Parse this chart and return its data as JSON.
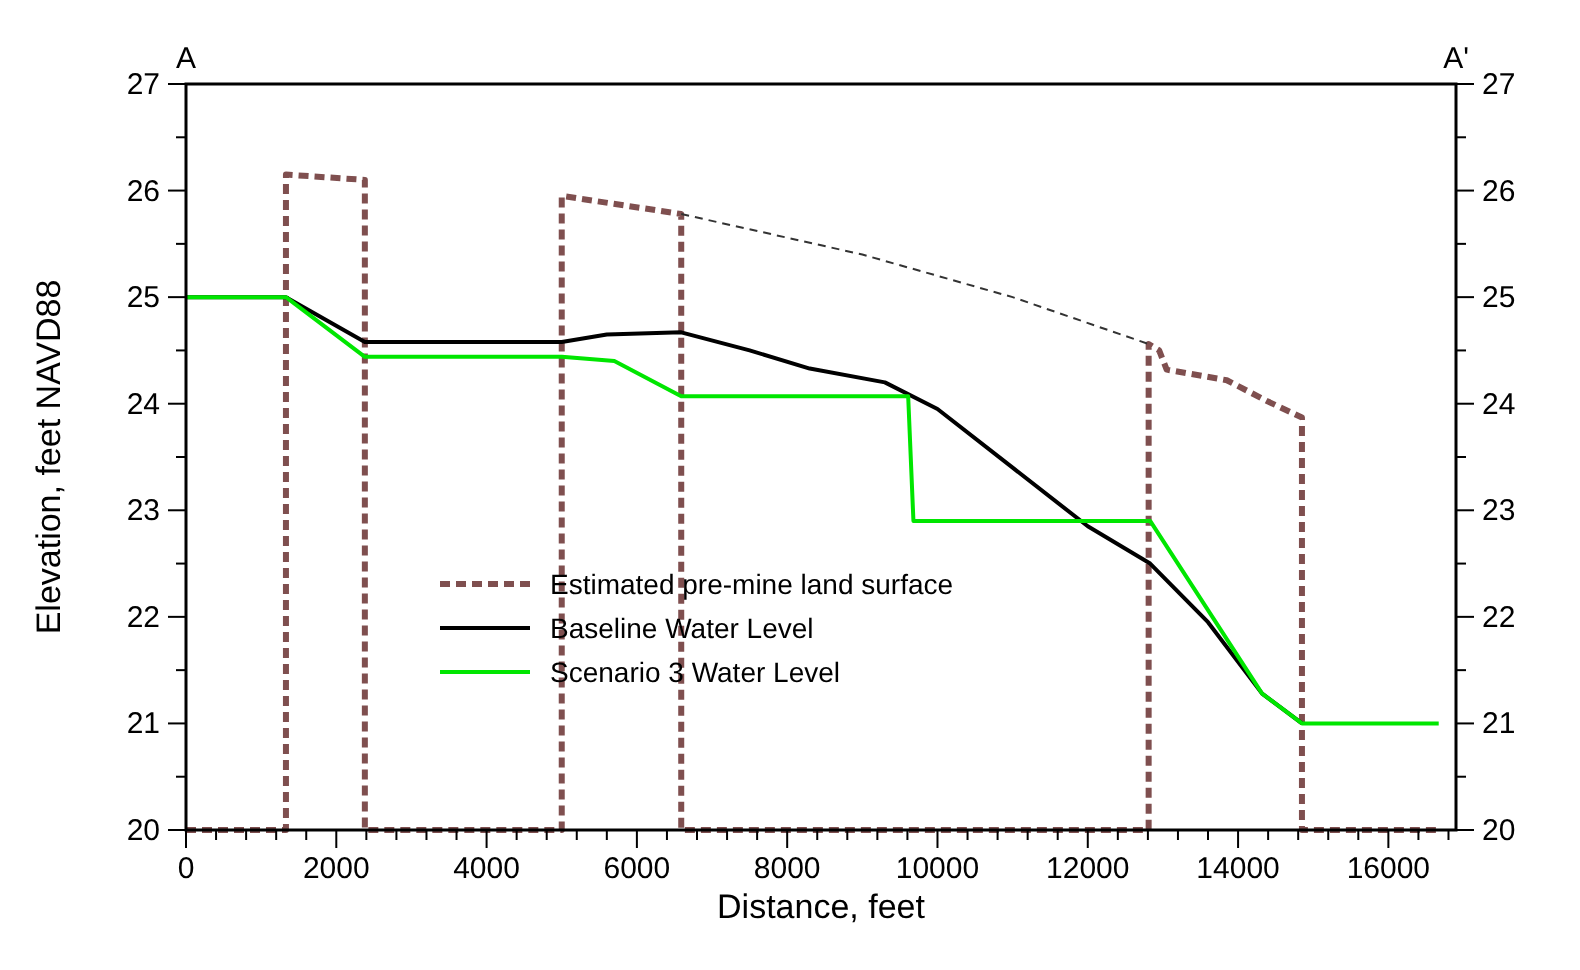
{
  "chart_data": {
    "type": "line",
    "xlabel": "Distance, feet",
    "ylabel": "Elevation, feet NAVD88",
    "annotations": [
      "A",
      "A'"
    ],
    "xlim": [
      0,
      16900
    ],
    "ylim": [
      20,
      27
    ],
    "xticks": [
      0,
      {
        "value": 400,
        "label": null
      },
      {
        "value": 800,
        "label": null
      },
      {
        "value": 1200,
        "label": null
      },
      {
        "value": 1600,
        "label": null
      },
      2000,
      {
        "value": 2400,
        "label": null
      },
      {
        "value": 2800,
        "label": null
      },
      {
        "value": 3200,
        "label": null
      },
      {
        "value": 3600,
        "label": null
      },
      4000,
      {
        "value": 4400,
        "label": null
      },
      {
        "value": 4800,
        "label": null
      },
      {
        "value": 5200,
        "label": null
      },
      {
        "value": 5600,
        "label": null
      },
      6000,
      {
        "value": 6400,
        "label": null
      },
      {
        "value": 6800,
        "label": null
      },
      {
        "value": 7200,
        "label": null
      },
      {
        "value": 7600,
        "label": null
      },
      8000,
      {
        "value": 8400,
        "label": null
      },
      {
        "value": 8800,
        "label": null
      },
      {
        "value": 9200,
        "label": null
      },
      {
        "value": 9600,
        "label": null
      },
      10000,
      {
        "value": 10400,
        "label": null
      },
      {
        "value": 10800,
        "label": null
      },
      {
        "value": 11200,
        "label": null
      },
      {
        "value": 11600,
        "label": null
      },
      12000,
      {
        "value": 12400,
        "label": null
      },
      {
        "value": 12800,
        "label": null
      },
      {
        "value": 13200,
        "label": null
      },
      {
        "value": 13600,
        "label": null
      },
      14000,
      {
        "value": 14400,
        "label": null
      },
      {
        "value": 14800,
        "label": null
      },
      {
        "value": 15200,
        "label": null
      },
      {
        "value": 15600,
        "label": null
      },
      16000,
      {
        "value": 16400,
        "label": null
      },
      {
        "value": 16800,
        "label": null
      }
    ],
    "yticks": [
      20,
      {
        "value": 20.5,
        "label": null
      },
      21,
      {
        "value": 21.5,
        "label": null
      },
      22,
      {
        "value": 22.5,
        "label": null
      },
      23,
      {
        "value": 23.5,
        "label": null
      },
      24,
      {
        "value": 24.5,
        "label": null
      },
      25,
      {
        "value": 25.5,
        "label": null
      },
      26,
      {
        "value": 26.5,
        "label": null
      },
      27
    ],
    "y2lim": [
      20,
      27
    ],
    "y2ticks": [
      20,
      {
        "value": 20.5,
        "label": null
      },
      21,
      {
        "value": 21.5,
        "label": null
      },
      22,
      {
        "value": 22.5,
        "label": null
      },
      23,
      {
        "value": 23.5,
        "label": null
      },
      24,
      {
        "value": 24.5,
        "label": null
      },
      25,
      {
        "value": 25.5,
        "label": null
      },
      26,
      {
        "value": 26.5,
        "label": null
      },
      27
    ],
    "grid": false,
    "legend": "bottom",
    "marker": "none",
    "series": [
      {
        "name": "Estimated pre-mine land surface",
        "color": "#7f4f4f",
        "line_style": "dashed",
        "x": [
          0,
          1330,
          1330,
          2380,
          2380,
          5000,
          5000,
          6590,
          6590,
          12810,
          12810,
          12950,
          13050,
          13850,
          14400,
          14850,
          14850,
          16700
        ],
        "values": [
          20,
          20,
          26.15,
          26.1,
          20,
          20,
          25.95,
          25.78,
          20,
          20,
          24.56,
          24.5,
          24.32,
          24.22,
          24.02,
          23.87,
          20,
          20
        ]
      },
      {
        "color": "#333333",
        "line_style": "dashed",
        "x": [
          6590,
          9000,
          11000,
          12810
        ],
        "values": [
          25.78,
          25.4,
          25.0,
          24.56
        ]
      },
      {
        "name": "Baseline Water Level",
        "color": "#000000",
        "line_style": "solid",
        "x": [
          0,
          1330,
          2380,
          5000,
          5600,
          6590,
          7500,
          8300,
          9300,
          10000,
          11000,
          12000,
          12830,
          13600,
          14320,
          14850
        ],
        "values": [
          25,
          25,
          24.58,
          24.58,
          24.65,
          24.67,
          24.5,
          24.33,
          24.2,
          23.95,
          23.4,
          22.85,
          22.5,
          21.95,
          21.28,
          21.0
        ]
      },
      {
        "name": "Scenario 3 Water Level",
        "color": "#00e600",
        "line_style": "solid",
        "x": [
          0,
          1330,
          2380,
          5000,
          5700,
          6590,
          9610,
          9680,
          12830,
          14320,
          14850,
          16670
        ],
        "values": [
          25,
          25,
          24.44,
          24.44,
          24.4,
          24.07,
          24.07,
          22.9,
          22.9,
          21.28,
          21.0,
          21.0
        ]
      }
    ]
  }
}
